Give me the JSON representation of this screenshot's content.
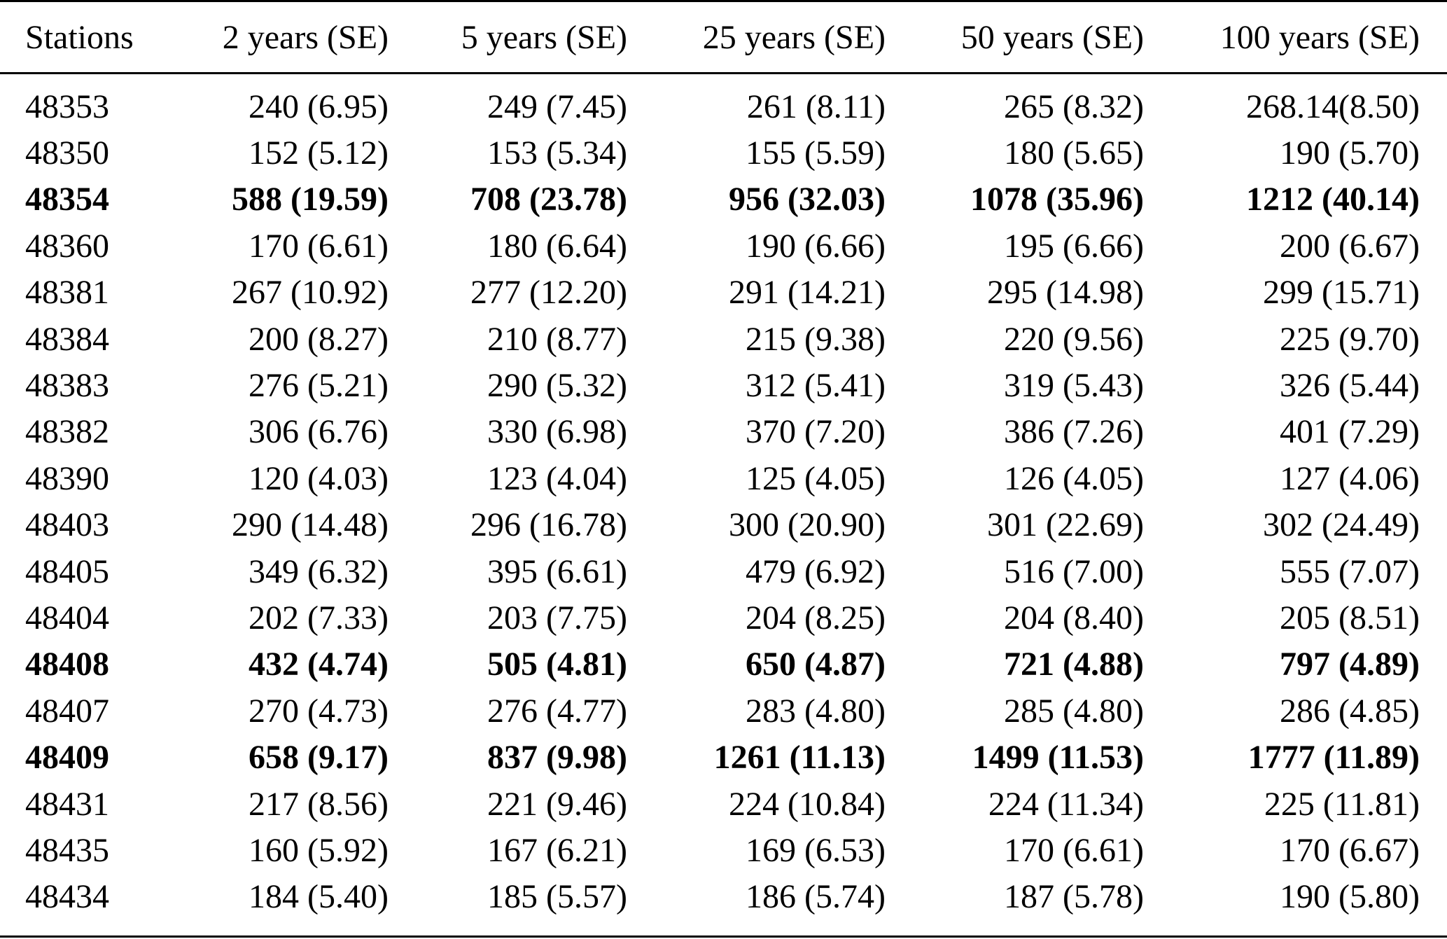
{
  "table": {
    "headers": [
      "Stations",
      "2 years (SE)",
      "5 years (SE)",
      "25 years (SE)",
      "50 years (SE)",
      "100 years (SE)"
    ],
    "rows": [
      {
        "bold": false,
        "cells": [
          "48353",
          "240 (6.95)",
          "249 (7.45)",
          "261 (8.11)",
          "265 (8.32)",
          "268.14(8.50)"
        ]
      },
      {
        "bold": false,
        "cells": [
          "48350",
          "152 (5.12)",
          "153 (5.34)",
          "155 (5.59)",
          "180 (5.65)",
          "190 (5.70)"
        ]
      },
      {
        "bold": true,
        "cells": [
          "48354",
          "588 (19.59)",
          "708 (23.78)",
          "956 (32.03)",
          "1078 (35.96)",
          "1212 (40.14)"
        ]
      },
      {
        "bold": false,
        "cells": [
          "48360",
          "170 (6.61)",
          "180 (6.64)",
          "190 (6.66)",
          "195 (6.66)",
          "200 (6.67)"
        ]
      },
      {
        "bold": false,
        "cells": [
          "48381",
          "267 (10.92)",
          "277 (12.20)",
          "291 (14.21)",
          "295 (14.98)",
          "299 (15.71)"
        ]
      },
      {
        "bold": false,
        "cells": [
          "48384",
          "200 (8.27)",
          "210 (8.77)",
          "215 (9.38)",
          "220 (9.56)",
          "225 (9.70)"
        ]
      },
      {
        "bold": false,
        "cells": [
          "48383",
          "276 (5.21)",
          "290 (5.32)",
          "312 (5.41)",
          "319 (5.43)",
          "326 (5.44)"
        ]
      },
      {
        "bold": false,
        "cells": [
          "48382",
          "306 (6.76)",
          "330 (6.98)",
          "370 (7.20)",
          "386 (7.26)",
          "401 (7.29)"
        ]
      },
      {
        "bold": false,
        "cells": [
          "48390",
          "120 (4.03)",
          "123 (4.04)",
          "125 (4.05)",
          "126 (4.05)",
          "127 (4.06)"
        ]
      },
      {
        "bold": false,
        "cells": [
          "48403",
          "290 (14.48)",
          "296 (16.78)",
          "300 (20.90)",
          "301 (22.69)",
          "302 (24.49)"
        ]
      },
      {
        "bold": false,
        "cells": [
          "48405",
          "349 (6.32)",
          "395 (6.61)",
          "479 (6.92)",
          "516 (7.00)",
          "555 (7.07)"
        ]
      },
      {
        "bold": false,
        "cells": [
          "48404",
          "202 (7.33)",
          "203 (7.75)",
          "204 (8.25)",
          "204 (8.40)",
          "205 (8.51)"
        ]
      },
      {
        "bold": true,
        "cells": [
          "48408",
          "432 (4.74)",
          "505 (4.81)",
          "650 (4.87)",
          "721 (4.88)",
          "797 (4.89)"
        ]
      },
      {
        "bold": false,
        "cells": [
          "48407",
          "270 (4.73)",
          "276 (4.77)",
          "283 (4.80)",
          "285 (4.80)",
          "286 (4.85)"
        ]
      },
      {
        "bold": true,
        "cells": [
          "48409",
          "658 (9.17)",
          "837 (9.98)",
          "1261 (11.13)",
          "1499 (11.53)",
          "1777 (11.89)"
        ]
      },
      {
        "bold": false,
        "cells": [
          "48431",
          "217 (8.56)",
          "221 (9.46)",
          "224 (10.84)",
          "224 (11.34)",
          "225 (11.81)"
        ]
      },
      {
        "bold": false,
        "cells": [
          "48435",
          "160 (5.92)",
          "167 (6.21)",
          "169 (6.53)",
          "170 (6.61)",
          "170 (6.67)"
        ]
      },
      {
        "bold": false,
        "cells": [
          "48434",
          "184 (5.40)",
          "185 (5.57)",
          "186 (5.74)",
          "187 (5.78)",
          "190 (5.80)"
        ]
      }
    ]
  }
}
